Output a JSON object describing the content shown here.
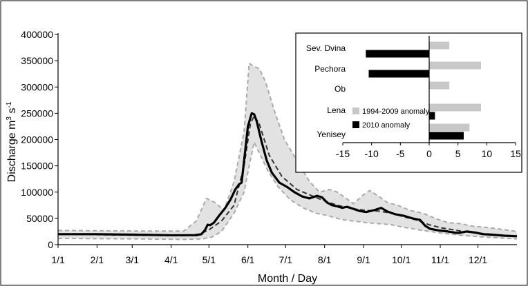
{
  "chart_data": [
    {
      "type": "line",
      "xlabel": "Month / Day",
      "ylabel_main": "Discharge m",
      "ylabel_sup": "3",
      "ylabel_s": " s",
      "ylabel_sup2": "-1",
      "ylim": [
        0,
        400000
      ],
      "xlim": [
        0,
        365
      ],
      "yticks": [
        0,
        50000,
        100000,
        150000,
        200000,
        250000,
        300000,
        350000,
        400000
      ],
      "ytick_labels": [
        "0",
        "50000",
        "100000",
        "150000",
        "200000",
        "250000",
        "300000",
        "350000",
        "400000"
      ],
      "xticks": [
        0,
        31,
        59,
        90,
        120,
        151,
        181,
        212,
        243,
        273,
        304,
        334
      ],
      "xtick_labels": [
        "1/1",
        "2/1",
        "3/1",
        "4/1",
        "5/1",
        "6/1",
        "7/1",
        "8/1",
        "9/1",
        "10/1",
        "11/1",
        "12/1"
      ],
      "grid": false,
      "colors": {
        "band": "#e2e2e2",
        "band_edge": "#aaaaaa",
        "mean": "#333333",
        "line2010": "#000000"
      },
      "band_upper": [
        [
          0,
          27000
        ],
        [
          60,
          26000
        ],
        [
          100,
          26000
        ],
        [
          110,
          45000
        ],
        [
          118,
          88000
        ],
        [
          125,
          80000
        ],
        [
          132,
          65000
        ],
        [
          140,
          120000
        ],
        [
          148,
          215000
        ],
        [
          152,
          345000
        ],
        [
          155,
          340000
        ],
        [
          160,
          335000
        ],
        [
          165,
          310000
        ],
        [
          172,
          255000
        ],
        [
          180,
          200000
        ],
        [
          190,
          160000
        ],
        [
          200,
          120000
        ],
        [
          208,
          100000
        ],
        [
          216,
          105000
        ],
        [
          222,
          100000
        ],
        [
          228,
          90000
        ],
        [
          235,
          78000
        ],
        [
          243,
          95000
        ],
        [
          248,
          103000
        ],
        [
          255,
          92000
        ],
        [
          262,
          80000
        ],
        [
          270,
          75000
        ],
        [
          280,
          65000
        ],
        [
          290,
          60000
        ],
        [
          300,
          50000
        ],
        [
          310,
          42000
        ],
        [
          320,
          40000
        ],
        [
          330,
          35000
        ],
        [
          340,
          33000
        ],
        [
          350,
          30000
        ],
        [
          365,
          25000
        ]
      ],
      "band_lower": [
        [
          0,
          12000
        ],
        [
          60,
          11000
        ],
        [
          100,
          10000
        ],
        [
          115,
          11000
        ],
        [
          122,
          14000
        ],
        [
          130,
          25000
        ],
        [
          140,
          60000
        ],
        [
          148,
          100000
        ],
        [
          152,
          150000
        ],
        [
          156,
          195000
        ],
        [
          160,
          175000
        ],
        [
          167,
          140000
        ],
        [
          175,
          110000
        ],
        [
          185,
          85000
        ],
        [
          195,
          70000
        ],
        [
          205,
          60000
        ],
        [
          215,
          55000
        ],
        [
          225,
          48000
        ],
        [
          235,
          45000
        ],
        [
          245,
          42000
        ],
        [
          255,
          40000
        ],
        [
          265,
          38000
        ],
        [
          275,
          33000
        ],
        [
          290,
          27000
        ],
        [
          305,
          22000
        ],
        [
          320,
          18000
        ],
        [
          335,
          15000
        ],
        [
          350,
          13000
        ],
        [
          365,
          11000
        ]
      ],
      "series": [
        {
          "style": "dashed",
          "points": [
            [
              0,
              20000
            ],
            [
              60,
              18000
            ],
            [
              100,
              17000
            ],
            [
              112,
              20000
            ],
            [
              120,
              28000
            ],
            [
              130,
              45000
            ],
            [
              140,
              75000
            ],
            [
              148,
              150000
            ],
            [
              153,
              230000
            ],
            [
              156,
              245000
            ],
            [
              160,
              230000
            ],
            [
              168,
              170000
            ],
            [
              178,
              130000
            ],
            [
              190,
              105000
            ],
            [
              200,
              95000
            ],
            [
              210,
              85000
            ],
            [
              222,
              75000
            ],
            [
              235,
              68000
            ],
            [
              245,
              65000
            ],
            [
              255,
              64000
            ],
            [
              265,
              60000
            ],
            [
              275,
              53000
            ],
            [
              285,
              47000
            ],
            [
              295,
              38000
            ],
            [
              305,
              32000
            ],
            [
              320,
              26000
            ],
            [
              335,
              22000
            ],
            [
              350,
              18000
            ],
            [
              365,
              15000
            ]
          ]
        },
        {
          "style": "solid",
          "points": [
            [
              0,
              20000
            ],
            [
              30,
              20000
            ],
            [
              60,
              19000
            ],
            [
              90,
              18000
            ],
            [
              110,
              18000
            ],
            [
              114,
              20000
            ],
            [
              117,
              28000
            ],
            [
              119,
              38000
            ],
            [
              121,
              37000
            ],
            [
              124,
              42000
            ],
            [
              128,
              55000
            ],
            [
              133,
              70000
            ],
            [
              137,
              85000
            ],
            [
              141,
              105000
            ],
            [
              144,
              115000
            ],
            [
              146,
              118000
            ],
            [
              148,
              160000
            ],
            [
              151,
              225000
            ],
            [
              154,
              250000
            ],
            [
              156,
              248000
            ],
            [
              158,
              235000
            ],
            [
              162,
              195000
            ],
            [
              166,
              160000
            ],
            [
              170,
              137000
            ],
            [
              176,
              118000
            ],
            [
              182,
              110000
            ],
            [
              188,
              100000
            ],
            [
              194,
              92000
            ],
            [
              200,
              88000
            ],
            [
              206,
              93000
            ],
            [
              210,
              90000
            ],
            [
              214,
              80000
            ],
            [
              218,
              75000
            ],
            [
              222,
              73000
            ],
            [
              226,
              70000
            ],
            [
              230,
              72000
            ],
            [
              235,
              68000
            ],
            [
              240,
              64000
            ],
            [
              245,
              62000
            ],
            [
              252,
              66000
            ],
            [
              257,
              70000
            ],
            [
              262,
              63000
            ],
            [
              268,
              58000
            ],
            [
              275,
              55000
            ],
            [
              282,
              50000
            ],
            [
              288,
              47000
            ],
            [
              292,
              36000
            ],
            [
              296,
              30000
            ],
            [
              303,
              27000
            ],
            [
              310,
              25000
            ],
            [
              318,
              22000
            ],
            [
              325,
              25000
            ],
            [
              332,
              23000
            ],
            [
              338,
              20000
            ],
            [
              345,
              19000
            ],
            [
              355,
              17000
            ],
            [
              365,
              16000
            ]
          ]
        }
      ]
    },
    {
      "type": "bar",
      "orientation": "horizontal",
      "categories": [
        "Sev. Dvina",
        "Pechora",
        "Ob",
        "Lena",
        "Yenisey"
      ],
      "series": [
        {
          "name": "1994-2009 anomaly",
          "color": "#c8c8c8",
          "values": [
            3.5,
            9.0,
            3.5,
            9.0,
            7.0
          ]
        },
        {
          "name": "2010 anomaly",
          "color": "#000000",
          "values": [
            -11.0,
            -10.5,
            0.0,
            1.0,
            6.0
          ]
        }
      ],
      "xlim": [
        -15,
        15
      ],
      "xticks": [
        -15,
        -10,
        -5,
        0,
        5,
        10,
        15
      ],
      "xtick_labels": [
        "-15",
        "-10",
        "-5",
        "0",
        "5",
        "10",
        "15"
      ],
      "legend_position": "left, lower half"
    }
  ]
}
